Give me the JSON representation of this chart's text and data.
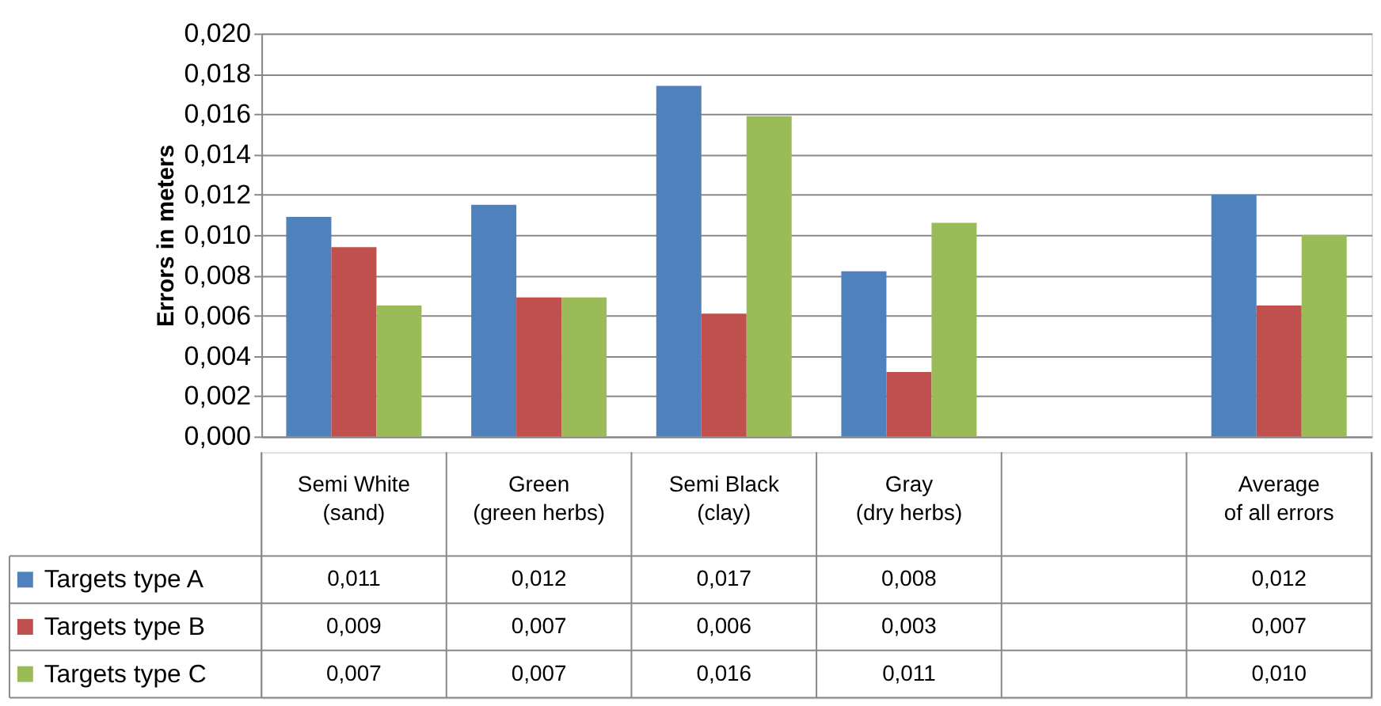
{
  "chart_data": {
    "type": "bar",
    "ylabel": "Errors in meters",
    "categories": [
      "Semi White\n(sand)",
      "Green\n(green herbs)",
      "Semi Black\n(clay)",
      "Gray\n(dry herbs)",
      null,
      "Average\nof all errors"
    ],
    "series": [
      {
        "name": "Targets type A",
        "color": "#4f81bd",
        "values": [
          0.0109,
          0.0115,
          0.0174,
          0.0082,
          null,
          0.012
        ],
        "value_labels": [
          "0,011",
          "0,012",
          "0,017",
          "0,008",
          null,
          "0,012"
        ]
      },
      {
        "name": "Targets type B",
        "color": "#c0504d",
        "values": [
          0.0094,
          0.0069,
          0.0061,
          0.0032,
          null,
          0.0065
        ],
        "value_labels": [
          "0,009",
          "0,007",
          "0,006",
          "0,003",
          null,
          "0,007"
        ]
      },
      {
        "name": "Targets type C",
        "color": "#9bbb59",
        "values": [
          0.0065,
          0.0069,
          0.0159,
          0.0106,
          null,
          0.01
        ],
        "value_labels": [
          "0,007",
          "0,007",
          "0,016",
          "0,011",
          null,
          "0,010"
        ]
      }
    ],
    "ylim": [
      0,
      0.02
    ],
    "yticks": [
      {
        "value": 0,
        "label": "0,000"
      },
      {
        "value": 0.002,
        "label": "0,002"
      },
      {
        "value": 0.004,
        "label": "0,004"
      },
      {
        "value": 0.006,
        "label": "0,006"
      },
      {
        "value": 0.008,
        "label": "0,008"
      },
      {
        "value": 0.01,
        "label": "0,010"
      },
      {
        "value": 0.012,
        "label": "0,012"
      },
      {
        "value": 0.014,
        "label": "0,014"
      },
      {
        "value": 0.016,
        "label": "0,016"
      },
      {
        "value": 0.018,
        "label": "0,018"
      },
      {
        "value": 0.02,
        "label": "0,020"
      }
    ],
    "grid": "y",
    "legend": "bottom"
  }
}
